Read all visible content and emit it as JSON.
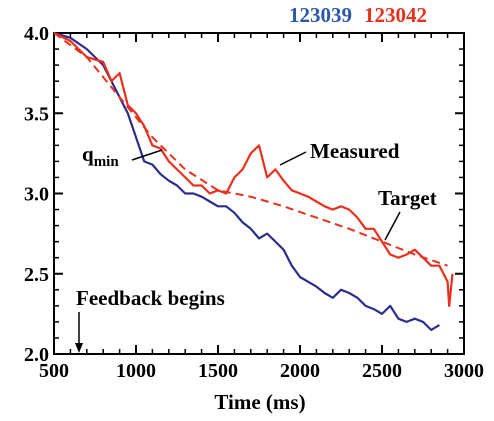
{
  "chart_data": {
    "type": "line",
    "title": "",
    "xlabel": "Time (ms)",
    "ylabel": "",
    "xlim": [
      500,
      3000
    ],
    "ylim": [
      2.0,
      4.0
    ],
    "x_ticks": [
      500,
      1000,
      1500,
      2000,
      2500,
      3000
    ],
    "y_ticks": [
      2.0,
      2.5,
      3.0,
      3.5,
      4.0
    ],
    "x_tick_labels": [
      "500",
      "1000",
      "1500",
      "2000",
      "2500",
      "3000"
    ],
    "y_tick_labels": [
      "2.0",
      "2.5",
      "3.0",
      "3.5",
      "4.0"
    ],
    "grid": false,
    "legend": {
      "placement": "top-right, above plot",
      "entries": [
        "123039",
        "123042"
      ]
    },
    "annotations": {
      "qmin_base": "q",
      "qmin_sub": "min",
      "measured": "Measured",
      "target": "Target",
      "feedback": "Feedback begins"
    },
    "series": [
      {
        "name": "123039",
        "color": "#2c2c8c",
        "style": "solid",
        "points": [
          [
            500,
            4.0
          ],
          [
            600,
            3.97
          ],
          [
            700,
            3.9
          ],
          [
            800,
            3.8
          ],
          [
            850,
            3.7
          ],
          [
            900,
            3.6
          ],
          [
            950,
            3.5
          ],
          [
            1000,
            3.35
          ],
          [
            1050,
            3.2
          ],
          [
            1100,
            3.18
          ],
          [
            1150,
            3.12
          ],
          [
            1200,
            3.08
          ],
          [
            1250,
            3.05
          ],
          [
            1300,
            3.0
          ],
          [
            1350,
            3.0
          ],
          [
            1400,
            2.98
          ],
          [
            1450,
            2.95
          ],
          [
            1500,
            2.92
          ],
          [
            1550,
            2.92
          ],
          [
            1600,
            2.88
          ],
          [
            1650,
            2.82
          ],
          [
            1700,
            2.78
          ],
          [
            1750,
            2.72
          ],
          [
            1800,
            2.75
          ],
          [
            1850,
            2.7
          ],
          [
            1900,
            2.65
          ],
          [
            1950,
            2.55
          ],
          [
            2000,
            2.48
          ],
          [
            2050,
            2.45
          ],
          [
            2100,
            2.42
          ],
          [
            2150,
            2.38
          ],
          [
            2200,
            2.35
          ],
          [
            2250,
            2.4
          ],
          [
            2300,
            2.38
          ],
          [
            2350,
            2.35
          ],
          [
            2400,
            2.3
          ],
          [
            2450,
            2.28
          ],
          [
            2500,
            2.25
          ],
          [
            2550,
            2.3
          ],
          [
            2600,
            2.22
          ],
          [
            2650,
            2.2
          ],
          [
            2700,
            2.22
          ],
          [
            2750,
            2.2
          ],
          [
            2800,
            2.15
          ],
          [
            2850,
            2.18
          ]
        ]
      },
      {
        "name": "123042",
        "color": "#e8301c",
        "style": "solid",
        "points": [
          [
            500,
            4.0
          ],
          [
            600,
            3.95
          ],
          [
            700,
            3.85
          ],
          [
            800,
            3.82
          ],
          [
            850,
            3.7
          ],
          [
            900,
            3.75
          ],
          [
            950,
            3.55
          ],
          [
            1000,
            3.5
          ],
          [
            1050,
            3.42
          ],
          [
            1100,
            3.3
          ],
          [
            1150,
            3.28
          ],
          [
            1200,
            3.2
          ],
          [
            1250,
            3.15
          ],
          [
            1300,
            3.1
          ],
          [
            1350,
            3.05
          ],
          [
            1400,
            3.05
          ],
          [
            1450,
            3.0
          ],
          [
            1500,
            3.02
          ],
          [
            1550,
            3.0
          ],
          [
            1600,
            3.1
          ],
          [
            1650,
            3.15
          ],
          [
            1700,
            3.25
          ],
          [
            1750,
            3.3
          ],
          [
            1800,
            3.1
          ],
          [
            1850,
            3.15
          ],
          [
            1900,
            3.08
          ],
          [
            1950,
            3.02
          ],
          [
            2000,
            3.0
          ],
          [
            2050,
            2.98
          ],
          [
            2100,
            2.95
          ],
          [
            2150,
            2.92
          ],
          [
            2200,
            2.9
          ],
          [
            2250,
            2.92
          ],
          [
            2300,
            2.9
          ],
          [
            2350,
            2.85
          ],
          [
            2400,
            2.78
          ],
          [
            2450,
            2.78
          ],
          [
            2500,
            2.7
          ],
          [
            2550,
            2.62
          ],
          [
            2600,
            2.6
          ],
          [
            2650,
            2.62
          ],
          [
            2700,
            2.65
          ],
          [
            2750,
            2.6
          ],
          [
            2800,
            2.55
          ],
          [
            2850,
            2.55
          ],
          [
            2900,
            2.45
          ],
          [
            2910,
            2.3
          ],
          [
            2930,
            2.5
          ]
        ]
      },
      {
        "name": "Target",
        "color": "#e8301c",
        "style": "dashed",
        "points": [
          [
            500,
            4.0
          ],
          [
            700,
            3.85
          ],
          [
            900,
            3.6
          ],
          [
            1100,
            3.35
          ],
          [
            1300,
            3.15
          ],
          [
            1500,
            3.02
          ],
          [
            1700,
            2.98
          ],
          [
            1900,
            2.92
          ],
          [
            2100,
            2.85
          ],
          [
            2300,
            2.78
          ],
          [
            2500,
            2.7
          ],
          [
            2700,
            2.62
          ],
          [
            2900,
            2.55
          ]
        ]
      }
    ]
  }
}
